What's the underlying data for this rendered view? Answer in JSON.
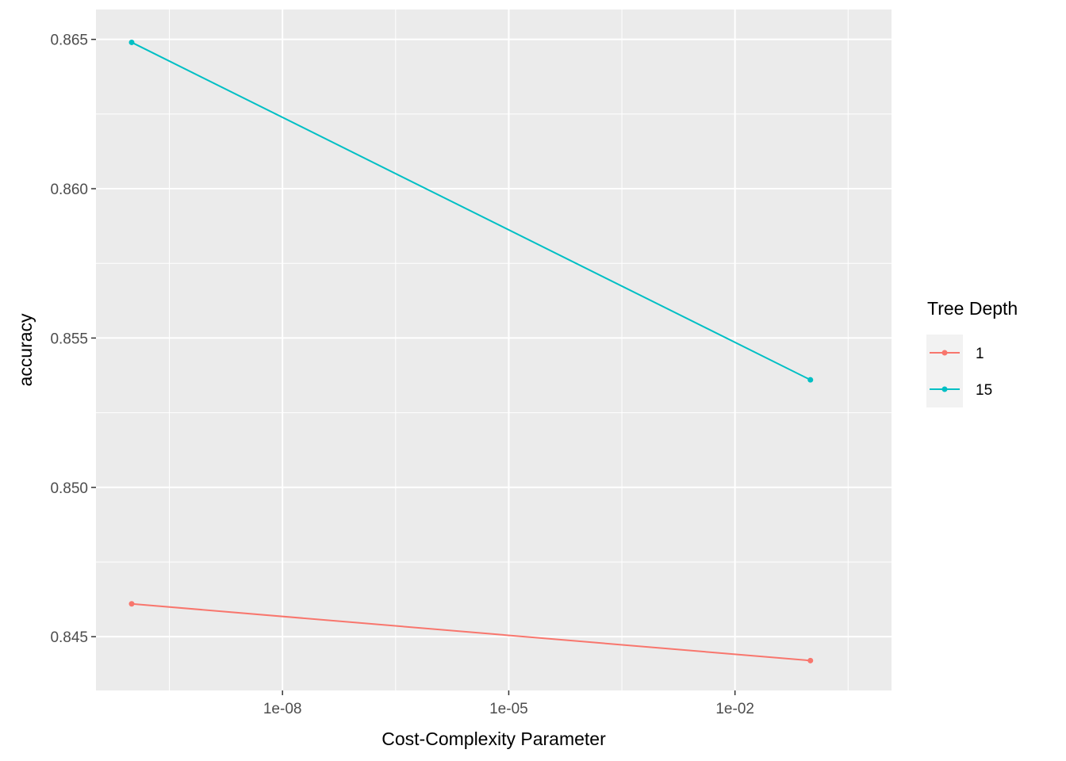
{
  "chart_data": {
    "type": "line",
    "xlabel": "Cost-Complexity Parameter",
    "ylabel": "accuracy",
    "x_scale": "log10",
    "xlim": [
      1e-10,
      0.4
    ],
    "ylim": [
      0.8432,
      0.866
    ],
    "x_ticks": [
      {
        "value": 1e-08,
        "label": "1e-08"
      },
      {
        "value": 1e-05,
        "label": "1e-05"
      },
      {
        "value": 0.01,
        "label": "1e-02"
      }
    ],
    "y_ticks": [
      {
        "value": 0.845,
        "label": "0.845"
      },
      {
        "value": 0.85,
        "label": "0.850"
      },
      {
        "value": 0.855,
        "label": "0.855"
      },
      {
        "value": 0.86,
        "label": "0.860"
      },
      {
        "value": 0.865,
        "label": "0.865"
      }
    ],
    "grid": true,
    "legend": {
      "title": "Tree Depth",
      "placement": "right"
    },
    "series": [
      {
        "name": "1",
        "color": "#F8766D",
        "points": [
          {
            "x": 1e-10,
            "y": 0.8461
          },
          {
            "x": 0.1,
            "y": 0.8442
          }
        ]
      },
      {
        "name": "15",
        "color": "#00BFC4",
        "points": [
          {
            "x": 1e-10,
            "y": 0.8649
          },
          {
            "x": 0.1,
            "y": 0.8536
          }
        ]
      }
    ]
  }
}
